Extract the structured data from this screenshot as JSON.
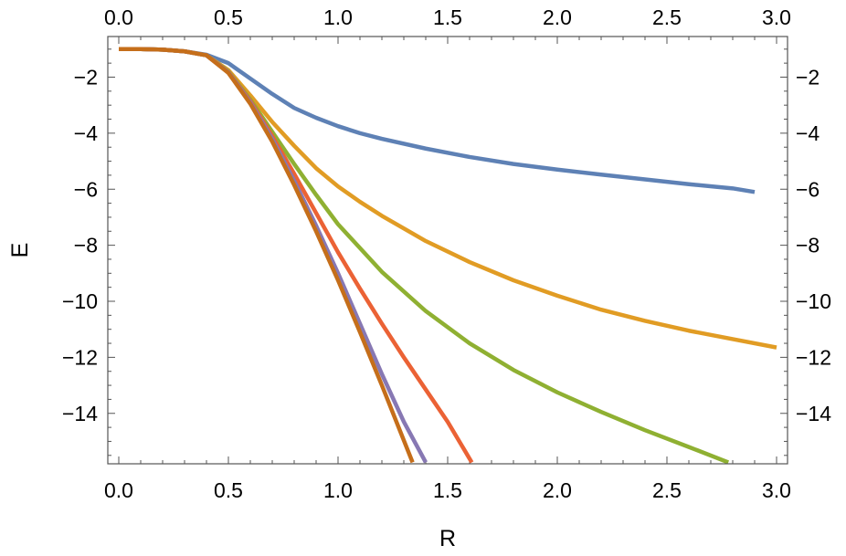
{
  "chart_data": {
    "type": "line",
    "title": "",
    "xlabel": "R",
    "ylabel": "E",
    "xlim": [
      -0.05,
      3.05
    ],
    "ylim": [
      -15.8,
      -0.55
    ],
    "x_ticks": [
      0.0,
      0.5,
      1.0,
      1.5,
      2.0,
      2.5,
      3.0
    ],
    "x_tick_labels": [
      "0.0",
      "0.5",
      "1.0",
      "1.5",
      "2.0",
      "2.5",
      "3.0"
    ],
    "y_ticks": [
      -2,
      -4,
      -6,
      -8,
      -10,
      -12,
      -14
    ],
    "y_tick_labels": [
      "−2",
      "−4",
      "−6",
      "−8",
      "−10",
      "−12",
      "−14"
    ],
    "frame_ticks_all_sides": true,
    "grid": false,
    "legend": "none",
    "series": [
      {
        "color": "#5E81B5",
        "x": [
          0.0,
          0.1,
          0.2,
          0.3,
          0.4,
          0.5,
          0.6,
          0.7,
          0.8,
          0.9,
          1.0,
          1.1,
          1.2,
          1.4,
          1.6,
          1.8,
          2.0,
          2.2,
          2.4,
          2.6,
          2.8,
          2.9
        ],
        "y": [
          -1.0,
          -1.0,
          -1.02,
          -1.08,
          -1.2,
          -1.5,
          -2.05,
          -2.6,
          -3.1,
          -3.45,
          -3.75,
          -4.0,
          -4.2,
          -4.55,
          -4.85,
          -5.1,
          -5.3,
          -5.48,
          -5.65,
          -5.82,
          -5.97,
          -6.1
        ]
      },
      {
        "color": "#E19C24",
        "x": [
          0.0,
          0.1,
          0.2,
          0.3,
          0.4,
          0.5,
          0.6,
          0.7,
          0.8,
          0.9,
          1.0,
          1.1,
          1.2,
          1.4,
          1.6,
          1.8,
          2.0,
          2.2,
          2.4,
          2.6,
          2.8,
          3.0
        ],
        "y": [
          -1.0,
          -1.0,
          -1.02,
          -1.08,
          -1.22,
          -1.75,
          -2.65,
          -3.6,
          -4.45,
          -5.25,
          -5.9,
          -6.45,
          -6.95,
          -7.85,
          -8.6,
          -9.25,
          -9.8,
          -10.3,
          -10.7,
          -11.05,
          -11.35,
          -11.65
        ]
      },
      {
        "color": "#8FB032",
        "x": [
          0.0,
          0.1,
          0.2,
          0.3,
          0.4,
          0.5,
          0.6,
          0.7,
          0.8,
          0.9,
          1.0,
          1.2,
          1.4,
          1.6,
          1.8,
          2.0,
          2.2,
          2.4,
          2.6,
          2.78
        ],
        "y": [
          -1.0,
          -1.0,
          -1.02,
          -1.08,
          -1.22,
          -1.8,
          -2.8,
          -3.95,
          -5.1,
          -6.2,
          -7.25,
          -8.95,
          -10.35,
          -11.5,
          -12.45,
          -13.25,
          -13.95,
          -14.6,
          -15.2,
          -15.75
        ]
      },
      {
        "color": "#EB6235",
        "x": [
          0.0,
          0.1,
          0.2,
          0.3,
          0.4,
          0.5,
          0.6,
          0.7,
          0.8,
          0.9,
          1.0,
          1.1,
          1.2,
          1.3,
          1.4,
          1.5,
          1.61
        ],
        "y": [
          -1.0,
          -1.0,
          -1.02,
          -1.08,
          -1.22,
          -1.82,
          -2.85,
          -4.1,
          -5.45,
          -6.85,
          -8.25,
          -9.55,
          -10.8,
          -12.0,
          -13.15,
          -14.3,
          -15.75
        ]
      },
      {
        "color": "#8778B3",
        "x": [
          0.0,
          0.1,
          0.2,
          0.3,
          0.4,
          0.5,
          0.6,
          0.7,
          0.8,
          0.9,
          1.0,
          1.1,
          1.2,
          1.3,
          1.4
        ],
        "y": [
          -1.0,
          -1.0,
          -1.02,
          -1.08,
          -1.22,
          -1.83,
          -2.9,
          -4.2,
          -5.7,
          -7.3,
          -9.0,
          -10.8,
          -12.6,
          -14.3,
          -15.75
        ]
      },
      {
        "color": "#C56E1A",
        "x": [
          0.0,
          0.1,
          0.2,
          0.3,
          0.4,
          0.5,
          0.6,
          0.7,
          0.8,
          0.9,
          1.0,
          1.1,
          1.2,
          1.34
        ],
        "y": [
          -1.0,
          -1.0,
          -1.02,
          -1.08,
          -1.22,
          -1.85,
          -2.95,
          -4.3,
          -5.85,
          -7.5,
          -9.25,
          -11.1,
          -13.0,
          -15.75
        ]
      }
    ]
  }
}
